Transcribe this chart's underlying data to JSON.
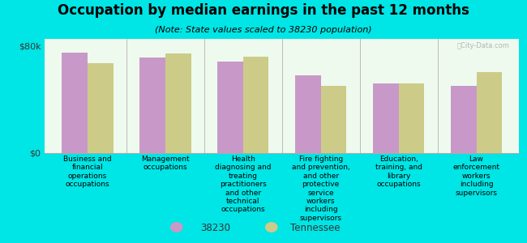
{
  "title": "Occupation by median earnings in the past 12 months",
  "subtitle": "(Note: State values scaled to 38230 population)",
  "background_color": "#00E5E5",
  "plot_bg_color": "#EEFAEE",
  "categories": [
    "Business and\nfinancial\noperations\noccupations",
    "Management\noccupations",
    "Health\ndiagnosing and\ntreating\npractitioners\nand other\ntechnical\noccupations",
    "Fire fighting\nand prevention,\nand other\nprotective\nservice\nworkers\nincluding\nsupervisors",
    "Education,\ntraining, and\nlibrary\noccupations",
    "Law\nenforcement\nworkers\nincluding\nsupervisors"
  ],
  "values_38230": [
    75000,
    71000,
    68000,
    58000,
    52000,
    50000
  ],
  "values_tennessee": [
    67000,
    74000,
    72000,
    50000,
    52000,
    60000
  ],
  "color_38230": "#C899C8",
  "color_tennessee": "#CCCC88",
  "ylim": [
    0,
    85000
  ],
  "yticks": [
    0,
    80000
  ],
  "ytick_labels": [
    "$0",
    "$80k"
  ],
  "legend_38230": "38230",
  "legend_tennessee": "Tennessee",
  "watermark": "ⓉCity-Data.com",
  "title_fontsize": 12,
  "subtitle_fontsize": 8,
  "label_fontsize": 6.5,
  "legend_fontsize": 8.5
}
